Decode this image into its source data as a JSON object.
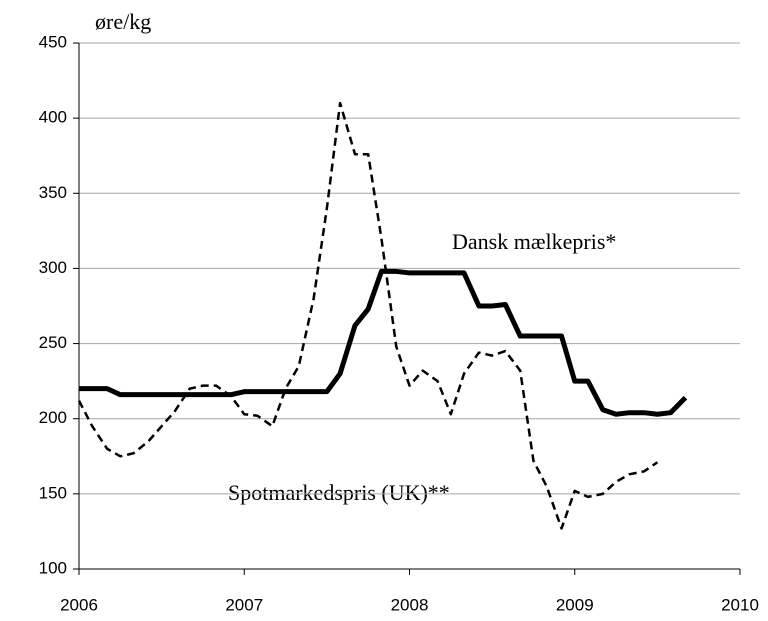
{
  "chart_data": {
    "type": "line",
    "y_label": "øre/kg",
    "xlim": [
      2006,
      2010
    ],
    "xticks": [
      2006,
      2007,
      2008,
      2009,
      2010
    ],
    "ylim": [
      100,
      450
    ],
    "yticks": [
      100,
      150,
      200,
      250,
      300,
      350,
      400,
      450
    ],
    "grid": true,
    "series": [
      {
        "name": "Dansk mælkepris*",
        "color": "#000000",
        "dash": false,
        "x": [
          2006.0,
          2006.08,
          2006.17,
          2006.25,
          2006.33,
          2006.42,
          2006.5,
          2006.58,
          2006.67,
          2006.75,
          2006.83,
          2006.92,
          2007.0,
          2007.08,
          2007.17,
          2007.25,
          2007.33,
          2007.42,
          2007.5,
          2007.58,
          2007.67,
          2007.75,
          2007.83,
          2007.92,
          2008.0,
          2008.08,
          2008.17,
          2008.25,
          2008.33,
          2008.42,
          2008.5,
          2008.58,
          2008.67,
          2008.75,
          2008.83,
          2008.92,
          2009.0,
          2009.08,
          2009.17,
          2009.25,
          2009.33,
          2009.42,
          2009.5,
          2009.58,
          2009.67
        ],
        "values": [
          220,
          220,
          220,
          216,
          216,
          216,
          216,
          216,
          216,
          216,
          216,
          216,
          218,
          218,
          218,
          218,
          218,
          218,
          218,
          230,
          262,
          273,
          298,
          298,
          297,
          297,
          297,
          297,
          297,
          275,
          275,
          276,
          255,
          255,
          255,
          255,
          225,
          225,
          206,
          203,
          204,
          204,
          203,
          204,
          214
        ]
      },
      {
        "name": "Spotmarkedspris (UK)**",
        "color": "#000000",
        "dash": true,
        "x": [
          2006.0,
          2006.08,
          2006.17,
          2006.25,
          2006.33,
          2006.42,
          2006.5,
          2006.58,
          2006.67,
          2006.75,
          2006.83,
          2006.92,
          2007.0,
          2007.08,
          2007.17,
          2007.25,
          2007.33,
          2007.42,
          2007.5,
          2007.58,
          2007.67,
          2007.75,
          2007.83,
          2007.92,
          2008.0,
          2008.08,
          2008.17,
          2008.25,
          2008.33,
          2008.42,
          2008.5,
          2008.58,
          2008.67,
          2008.75,
          2008.83,
          2008.92,
          2009.0,
          2009.08,
          2009.17,
          2009.25,
          2009.33,
          2009.42,
          2009.5
        ],
        "values": [
          212,
          195,
          180,
          175,
          177,
          185,
          195,
          205,
          220,
          222,
          222,
          215,
          203,
          202,
          195,
          220,
          235,
          280,
          340,
          410,
          376,
          376,
          320,
          248,
          222,
          232,
          225,
          203,
          230,
          244,
          242,
          245,
          232,
          172,
          155,
          127,
          152,
          148,
          150,
          158,
          163,
          165,
          171
        ]
      }
    ]
  }
}
